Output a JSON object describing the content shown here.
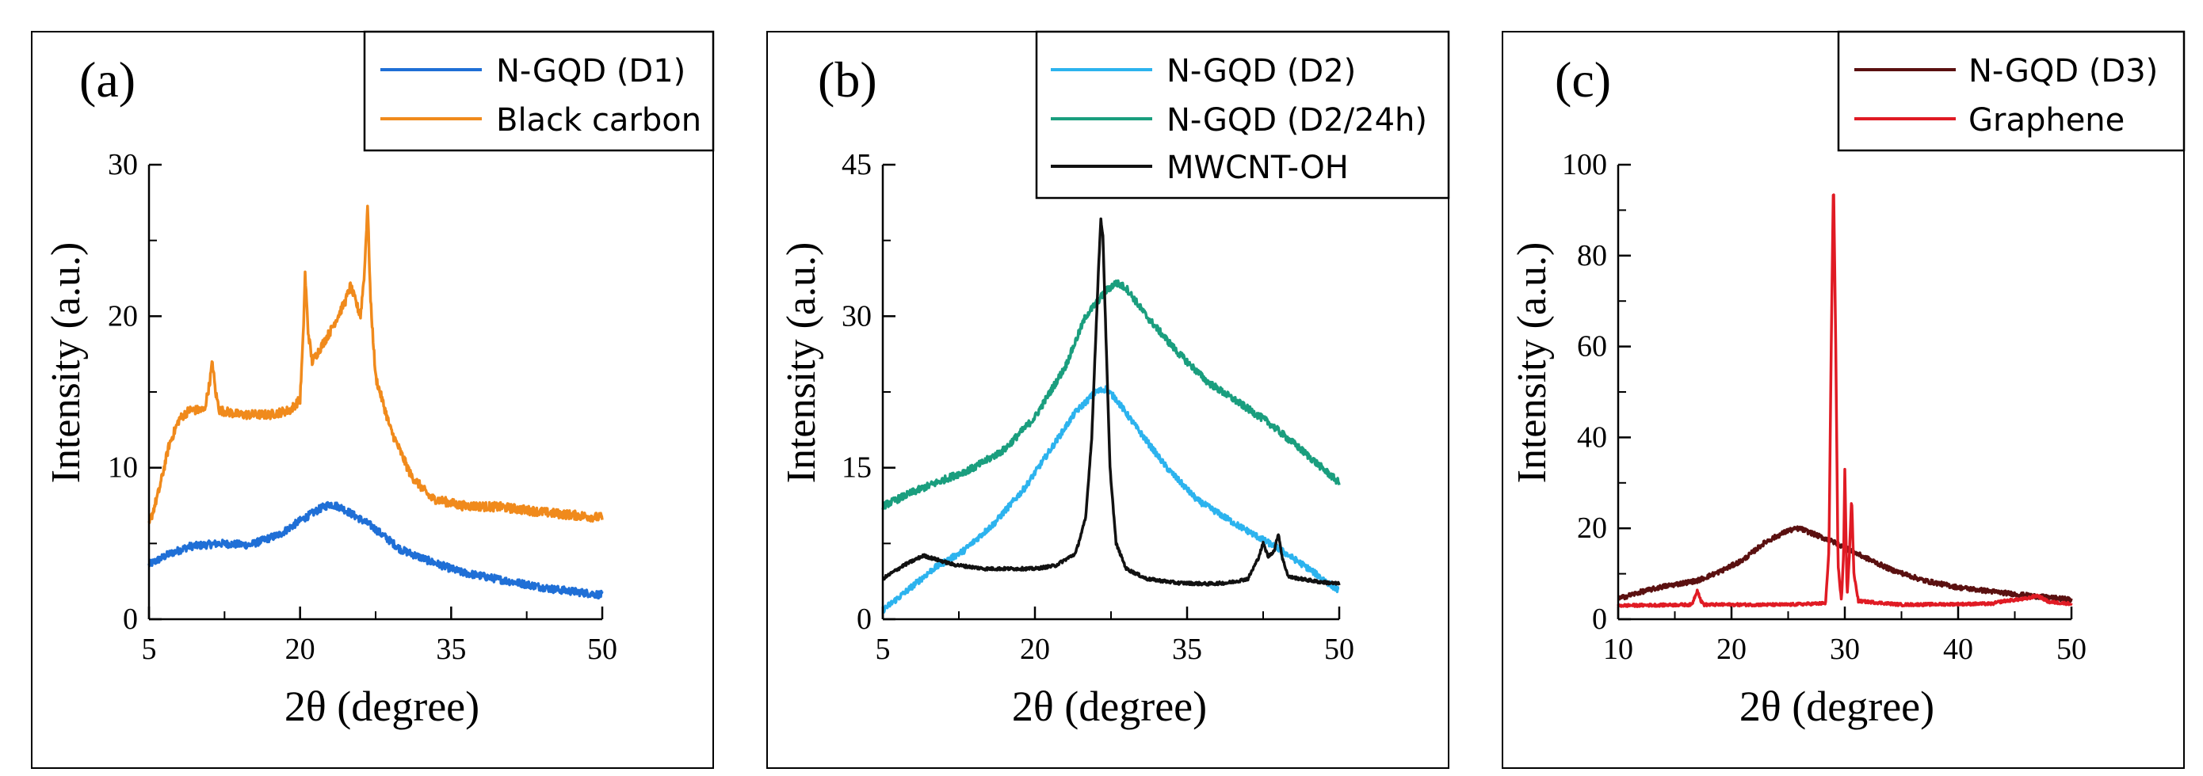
{
  "chart_data": [
    {
      "type": "line",
      "panel_label": "(a)",
      "title": "",
      "xlabel": "2θ (degree)",
      "ylabel": "Intensity (a.u.)",
      "xlim": [
        5,
        50
      ],
      "ylim": [
        0,
        30
      ],
      "xticks": [
        5,
        20,
        35,
        50
      ],
      "yticks": [
        0,
        10,
        20,
        30
      ],
      "legend": "top-right",
      "series": [
        {
          "name": "N-GQD (D1)",
          "color": "#1f6fd6",
          "noise": 0.25,
          "points": [
            [
              5,
              3.6
            ],
            [
              7,
              4.3
            ],
            [
              9,
              4.8
            ],
            [
              12,
              5.0
            ],
            [
              15,
              4.9
            ],
            [
              18,
              5.6
            ],
            [
              20,
              6.5
            ],
            [
              22,
              7.3
            ],
            [
              23,
              7.6
            ],
            [
              24,
              7.4
            ],
            [
              25,
              7.0
            ],
            [
              27,
              6.2
            ],
            [
              30,
              4.6
            ],
            [
              33,
              3.8
            ],
            [
              36,
              3.1
            ],
            [
              40,
              2.6
            ],
            [
              45,
              2.0
            ],
            [
              50,
              1.6
            ]
          ]
        },
        {
          "name": "Black carbon",
          "color": "#f08a1c",
          "noise": 0.3,
          "points": [
            [
              5,
              6.2
            ],
            [
              6,
              8.5
            ],
            [
              7,
              11.5
            ],
            [
              8,
              13.2
            ],
            [
              9,
              13.8
            ],
            [
              10.5,
              13.8
            ],
            [
              11,
              15.5
            ],
            [
              11.3,
              17.0
            ],
            [
              11.6,
              15.0
            ],
            [
              12,
              13.8
            ],
            [
              14,
              13.5
            ],
            [
              17,
              13.5
            ],
            [
              19,
              13.8
            ],
            [
              20,
              14.5
            ],
            [
              20.3,
              18.5
            ],
            [
              20.5,
              22.8
            ],
            [
              20.8,
              19.0
            ],
            [
              21.2,
              17.0
            ],
            [
              23,
              19.0
            ],
            [
              24.5,
              21.0
            ],
            [
              25,
              22.0
            ],
            [
              25.5,
              21.0
            ],
            [
              26,
              20.0
            ],
            [
              26.4,
              23.0
            ],
            [
              26.7,
              27.4
            ],
            [
              27.0,
              21.0
            ],
            [
              27.5,
              16.0
            ],
            [
              29,
              12.5
            ],
            [
              31,
              9.5
            ],
            [
              33,
              8.0
            ],
            [
              36,
              7.5
            ],
            [
              40,
              7.4
            ],
            [
              45,
              7.0
            ],
            [
              50,
              6.7
            ]
          ]
        }
      ]
    },
    {
      "type": "line",
      "panel_label": "(b)",
      "title": "",
      "xlabel": "2θ (degree)",
      "ylabel": "Intensity (a.u.)",
      "xlim": [
        5,
        50
      ],
      "ylim": [
        0,
        45
      ],
      "xticks": [
        5,
        20,
        35,
        50
      ],
      "yticks": [
        0,
        15,
        30,
        45
      ],
      "legend": "top-right",
      "series": [
        {
          "name": "N-GQD (D2)",
          "color": "#2cb3ee",
          "noise": 0.3,
          "points": [
            [
              5,
              0.9
            ],
            [
              7,
              2.5
            ],
            [
              10,
              5.0
            ],
            [
              13,
              6.8
            ],
            [
              16,
              9.5
            ],
            [
              19,
              13.0
            ],
            [
              22,
              17.5
            ],
            [
              24,
              20.5
            ],
            [
              26,
              22.5
            ],
            [
              27,
              22.8
            ],
            [
              28,
              21.8
            ],
            [
              30,
              19.0
            ],
            [
              33,
              15.0
            ],
            [
              36,
              11.8
            ],
            [
              40,
              9.3
            ],
            [
              44,
              7.0
            ],
            [
              47,
              5.0
            ],
            [
              50,
              2.8
            ]
          ]
        },
        {
          "name": "N-GQD (D2/24h)",
          "color": "#1a9e7e",
          "noise": 0.35,
          "points": [
            [
              5,
              11.2
            ],
            [
              8,
              12.6
            ],
            [
              11,
              13.8
            ],
            [
              14,
              15.0
            ],
            [
              17,
              16.8
            ],
            [
              20,
              20.0
            ],
            [
              23,
              25.0
            ],
            [
              25,
              30.0
            ],
            [
              27,
              32.5
            ],
            [
              28,
              33.3
            ],
            [
              29,
              32.8
            ],
            [
              31,
              30.0
            ],
            [
              34,
              26.5
            ],
            [
              37,
              23.5
            ],
            [
              40,
              21.5
            ],
            [
              43,
              19.5
            ],
            [
              46,
              17.0
            ],
            [
              50,
              13.5
            ]
          ]
        },
        {
          "name": "MWCNT-OH",
          "color": "#111111",
          "noise": 0.15,
          "points": [
            [
              5,
              4.0
            ],
            [
              7,
              5.3
            ],
            [
              9,
              6.3
            ],
            [
              10,
              6.0
            ],
            [
              12,
              5.4
            ],
            [
              15,
              5.0
            ],
            [
              18,
              5.0
            ],
            [
              20,
              5.0
            ],
            [
              22,
              5.3
            ],
            [
              24,
              6.5
            ],
            [
              25,
              10.0
            ],
            [
              25.6,
              18.0
            ],
            [
              26,
              28.0
            ],
            [
              26.3,
              35.5
            ],
            [
              26.5,
              39.5
            ],
            [
              26.7,
              38.0
            ],
            [
              27,
              28.0
            ],
            [
              27.4,
              15.0
            ],
            [
              28,
              7.5
            ],
            [
              29,
              5.0
            ],
            [
              31,
              4.0
            ],
            [
              34,
              3.6
            ],
            [
              37,
              3.5
            ],
            [
              39,
              3.6
            ],
            [
              41,
              4.0
            ],
            [
              42,
              6.0
            ],
            [
              42.5,
              7.5
            ],
            [
              43,
              6.2
            ],
            [
              43.6,
              6.8
            ],
            [
              44,
              8.5
            ],
            [
              44.4,
              6.0
            ],
            [
              45,
              4.2
            ],
            [
              48,
              3.7
            ],
            [
              50,
              3.5
            ]
          ]
        }
      ]
    },
    {
      "type": "line",
      "panel_label": "(c)",
      "title": "",
      "xlabel": "2θ (degree)",
      "ylabel": "Intensity (a.u.)",
      "xlim": [
        10,
        50
      ],
      "ylim": [
        0,
        100
      ],
      "xticks": [
        10,
        20,
        30,
        40,
        50
      ],
      "yticks": [
        0,
        20,
        40,
        60,
        80,
        100
      ],
      "legend": "top-right",
      "series": [
        {
          "name": "N-GQD (D3)",
          "color": "#5a1010",
          "noise": 0.5,
          "points": [
            [
              10,
              4.5
            ],
            [
              12,
              6.0
            ],
            [
              14,
              7.2
            ],
            [
              17,
              8.5
            ],
            [
              19,
              10.5
            ],
            [
              21,
              13.0
            ],
            [
              23,
              17.0
            ],
            [
              25,
              19.5
            ],
            [
              26,
              20.0
            ],
            [
              27,
              19.0
            ],
            [
              29,
              17.0
            ],
            [
              31,
              14.5
            ],
            [
              34,
              11.0
            ],
            [
              37,
              8.5
            ],
            [
              40,
              7.0
            ],
            [
              44,
              5.8
            ],
            [
              47,
              5.0
            ],
            [
              50,
              4.3
            ]
          ]
        },
        {
          "name": "Graphene",
          "color": "#e01b24",
          "noise": 0.3,
          "points": [
            [
              10,
              3.0
            ],
            [
              16.5,
              3.2
            ],
            [
              17.0,
              6.5
            ],
            [
              17.3,
              4.0
            ],
            [
              17.6,
              3.2
            ],
            [
              25,
              3.2
            ],
            [
              28.3,
              3.5
            ],
            [
              28.6,
              15.0
            ],
            [
              28.8,
              60.0
            ],
            [
              29.0,
              97.5
            ],
            [
              29.2,
              60.0
            ],
            [
              29.4,
              12.0
            ],
            [
              29.7,
              4.0
            ],
            [
              29.9,
              15.0
            ],
            [
              30.0,
              33.0
            ],
            [
              30.2,
              5.0
            ],
            [
              30.4,
              14.0
            ],
            [
              30.6,
              27.0
            ],
            [
              30.8,
              10.0
            ],
            [
              31.2,
              4.0
            ],
            [
              35,
              3.2
            ],
            [
              43,
              3.4
            ],
            [
              44,
              4.0
            ],
            [
              46,
              4.5
            ],
            [
              47,
              5.2
            ],
            [
              48,
              3.8
            ],
            [
              50,
              3.4
            ]
          ]
        }
      ]
    }
  ]
}
